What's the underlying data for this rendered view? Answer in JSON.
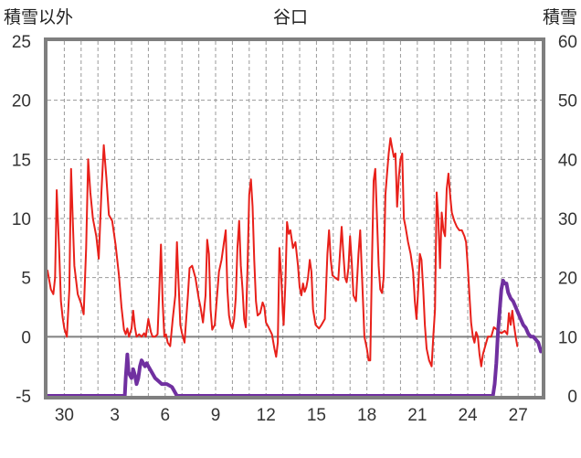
{
  "chart_data": {
    "type": "line",
    "title": "谷口",
    "left_axis_label": "積雪以外",
    "right_axis_label": "積雪",
    "ylim_left": [
      -5,
      25
    ],
    "yticks_left": [
      "25",
      "20",
      "15",
      "10",
      "5",
      "0",
      "-5"
    ],
    "ylim_right": [
      0,
      60
    ],
    "yticks_right": [
      "60",
      "50",
      "40",
      "30",
      "20",
      "10",
      "0"
    ],
    "x_start_day": -1,
    "x_end_day": 28.4,
    "x_tick_labels": [
      {
        "day": 0,
        "label": "30"
      },
      {
        "day": 3,
        "label": "3"
      },
      {
        "day": 6,
        "label": "6"
      },
      {
        "day": 9,
        "label": "9"
      },
      {
        "day": 12,
        "label": "12"
      },
      {
        "day": 15,
        "label": "15"
      },
      {
        "day": 18,
        "label": "18"
      },
      {
        "day": 21,
        "label": "21"
      },
      {
        "day": 24,
        "label": "24"
      },
      {
        "day": 27,
        "label": "27"
      }
    ],
    "grid": true,
    "series": [
      {
        "axis": "left",
        "color": "#e8201a",
        "points": [
          [
            -1.0,
            5.6
          ],
          [
            -0.8,
            4.0
          ],
          [
            -0.65,
            3.6
          ],
          [
            -0.55,
            5.0
          ],
          [
            -0.45,
            12.4
          ],
          [
            -0.3,
            7.0
          ],
          [
            -0.2,
            3.0
          ],
          [
            -0.1,
            1.6
          ],
          [
            0.0,
            0.7
          ],
          [
            0.15,
            0.0
          ],
          [
            0.3,
            4.0
          ],
          [
            0.4,
            14.2
          ],
          [
            0.5,
            10.0
          ],
          [
            0.6,
            6.0
          ],
          [
            0.8,
            3.6
          ],
          [
            1.0,
            2.8
          ],
          [
            1.15,
            1.9
          ],
          [
            1.3,
            7.5
          ],
          [
            1.42,
            15.0
          ],
          [
            1.55,
            12.2
          ],
          [
            1.7,
            10.0
          ],
          [
            1.9,
            8.5
          ],
          [
            2.05,
            6.6
          ],
          [
            2.2,
            12.0
          ],
          [
            2.35,
            16.2
          ],
          [
            2.5,
            13.5
          ],
          [
            2.65,
            10.3
          ],
          [
            2.85,
            9.8
          ],
          [
            3.05,
            7.8
          ],
          [
            3.25,
            5.2
          ],
          [
            3.4,
            2.5
          ],
          [
            3.55,
            0.6
          ],
          [
            3.65,
            0.2
          ],
          [
            3.75,
            0.7
          ],
          [
            3.85,
            0.0
          ],
          [
            4.0,
            0.7
          ],
          [
            4.1,
            2.2
          ],
          [
            4.2,
            0.8
          ],
          [
            4.3,
            0.0
          ],
          [
            4.45,
            0.2
          ],
          [
            4.6,
            0.0
          ],
          [
            4.75,
            0.3
          ],
          [
            4.85,
            0.0
          ],
          [
            5.0,
            1.5
          ],
          [
            5.15,
            0.4
          ],
          [
            5.25,
            0.0
          ],
          [
            5.4,
            0.0
          ],
          [
            5.55,
            0.2
          ],
          [
            5.65,
            4.0
          ],
          [
            5.75,
            7.8
          ],
          [
            5.85,
            3.0
          ],
          [
            5.95,
            0.0
          ],
          [
            6.05,
            0.2
          ],
          [
            6.15,
            -0.5
          ],
          [
            6.3,
            -0.8
          ],
          [
            6.45,
            1.5
          ],
          [
            6.6,
            3.5
          ],
          [
            6.7,
            8.0
          ],
          [
            6.8,
            4.5
          ],
          [
            6.9,
            1.0
          ],
          [
            7.0,
            0.3
          ],
          [
            7.15,
            -0.5
          ],
          [
            7.35,
            3.5
          ],
          [
            7.45,
            5.8
          ],
          [
            7.6,
            6.0
          ],
          [
            7.8,
            5.0
          ],
          [
            8.0,
            3.2
          ],
          [
            8.1,
            2.5
          ],
          [
            8.25,
            1.2
          ],
          [
            8.4,
            3.5
          ],
          [
            8.5,
            8.2
          ],
          [
            8.6,
            7.0
          ],
          [
            8.7,
            2.3
          ],
          [
            8.8,
            0.6
          ],
          [
            8.95,
            1.0
          ],
          [
            9.2,
            5.5
          ],
          [
            9.35,
            6.5
          ],
          [
            9.5,
            8.0
          ],
          [
            9.6,
            9.0
          ],
          [
            9.7,
            4.0
          ],
          [
            9.8,
            1.8
          ],
          [
            9.9,
            1.0
          ],
          [
            10.0,
            0.7
          ],
          [
            10.1,
            1.5
          ],
          [
            10.2,
            3.3
          ],
          [
            10.3,
            7.5
          ],
          [
            10.4,
            9.8
          ],
          [
            10.5,
            6.0
          ],
          [
            10.6,
            4.0
          ],
          [
            10.7,
            1.5
          ],
          [
            10.8,
            0.8
          ],
          [
            10.9,
            6.0
          ],
          [
            11.0,
            12.0
          ],
          [
            11.1,
            13.3
          ],
          [
            11.2,
            11.0
          ],
          [
            11.3,
            6.5
          ],
          [
            11.4,
            3.0
          ],
          [
            11.5,
            1.8
          ],
          [
            11.65,
            2.0
          ],
          [
            11.8,
            2.9
          ],
          [
            11.9,
            2.5
          ],
          [
            12.0,
            1.2
          ],
          [
            12.15,
            0.8
          ],
          [
            12.35,
            0.2
          ],
          [
            12.5,
            -1.0
          ],
          [
            12.6,
            -1.7
          ],
          [
            12.7,
            -0.5
          ],
          [
            12.8,
            7.5
          ],
          [
            12.9,
            5.2
          ],
          [
            13.0,
            2.0
          ],
          [
            13.05,
            1.0
          ],
          [
            13.15,
            4.5
          ],
          [
            13.25,
            9.7
          ],
          [
            13.35,
            8.7
          ],
          [
            13.45,
            9.0
          ],
          [
            13.6,
            7.5
          ],
          [
            13.75,
            8.0
          ],
          [
            13.9,
            6.0
          ],
          [
            14.0,
            4.2
          ],
          [
            14.1,
            3.5
          ],
          [
            14.2,
            4.5
          ],
          [
            14.3,
            3.8
          ],
          [
            14.4,
            4.2
          ],
          [
            14.5,
            5.0
          ],
          [
            14.6,
            6.5
          ],
          [
            14.7,
            5.5
          ],
          [
            14.8,
            2.3
          ],
          [
            14.95,
            1.0
          ],
          [
            15.15,
            0.7
          ],
          [
            15.3,
            1.0
          ],
          [
            15.5,
            1.5
          ],
          [
            15.65,
            7.0
          ],
          [
            15.75,
            9.0
          ],
          [
            15.85,
            6.5
          ],
          [
            15.95,
            5.2
          ],
          [
            16.1,
            5.0
          ],
          [
            16.3,
            4.8
          ],
          [
            16.5,
            9.3
          ],
          [
            16.6,
            7.0
          ],
          [
            16.7,
            5.0
          ],
          [
            16.8,
            4.6
          ],
          [
            16.9,
            5.8
          ],
          [
            17.0,
            8.5
          ],
          [
            17.1,
            6.2
          ],
          [
            17.2,
            3.5
          ],
          [
            17.35,
            3.0
          ],
          [
            17.5,
            7.0
          ],
          [
            17.6,
            9.0
          ],
          [
            17.7,
            5.5
          ],
          [
            17.85,
            0.0
          ],
          [
            18.0,
            -1.0
          ],
          [
            18.1,
            -2.0
          ],
          [
            18.2,
            -2.0
          ],
          [
            18.3,
            6.0
          ],
          [
            18.4,
            13.2
          ],
          [
            18.5,
            14.2
          ],
          [
            18.6,
            10.0
          ],
          [
            18.7,
            6.0
          ],
          [
            18.8,
            4.0
          ],
          [
            18.9,
            3.7
          ],
          [
            19.0,
            5.0
          ],
          [
            19.1,
            12.0
          ],
          [
            19.2,
            13.8
          ],
          [
            19.3,
            15.5
          ],
          [
            19.4,
            16.8
          ],
          [
            19.5,
            16.0
          ],
          [
            19.6,
            15.2
          ],
          [
            19.7,
            15.5
          ],
          [
            19.8,
            11.0
          ],
          [
            19.9,
            13.5
          ],
          [
            20.0,
            15.0
          ],
          [
            20.1,
            15.5
          ],
          [
            20.2,
            10.0
          ],
          [
            20.3,
            9.3
          ],
          [
            20.45,
            8.0
          ],
          [
            20.6,
            7.0
          ],
          [
            20.75,
            5.5
          ],
          [
            20.85,
            3.0
          ],
          [
            20.95,
            1.5
          ],
          [
            21.05,
            4.0
          ],
          [
            21.15,
            7.0
          ],
          [
            21.25,
            6.5
          ],
          [
            21.35,
            4.0
          ],
          [
            21.45,
            1.0
          ],
          [
            21.55,
            -1.0
          ],
          [
            21.7,
            -2.0
          ],
          [
            21.85,
            -2.5
          ],
          [
            21.95,
            0.0
          ],
          [
            22.05,
            2.3
          ],
          [
            22.15,
            12.2
          ],
          [
            22.25,
            10.0
          ],
          [
            22.35,
            5.8
          ],
          [
            22.45,
            10.5
          ],
          [
            22.55,
            9.0
          ],
          [
            22.65,
            8.5
          ],
          [
            22.75,
            12.5
          ],
          [
            22.85,
            13.8
          ],
          [
            22.95,
            12.0
          ],
          [
            23.05,
            10.5
          ],
          [
            23.2,
            9.8
          ],
          [
            23.35,
            9.3
          ],
          [
            23.5,
            9.0
          ],
          [
            23.65,
            9.0
          ],
          [
            23.8,
            8.5
          ],
          [
            23.9,
            8.0
          ],
          [
            24.0,
            6.0
          ],
          [
            24.1,
            3.5
          ],
          [
            24.2,
            1.2
          ],
          [
            24.3,
            0.0
          ],
          [
            24.4,
            -0.5
          ],
          [
            24.5,
            0.4
          ],
          [
            24.6,
            0.0
          ],
          [
            24.7,
            -1.5
          ],
          [
            24.8,
            -2.5
          ],
          [
            24.9,
            -1.5
          ],
          [
            25.0,
            -1.0
          ],
          [
            25.2,
            0.0
          ],
          [
            25.4,
            0.0
          ],
          [
            25.55,
            0.8
          ],
          [
            25.65,
            0.7
          ],
          [
            25.8,
            0.5
          ],
          [
            26.0,
            0.3
          ],
          [
            26.2,
            0.5
          ],
          [
            26.35,
            0.2
          ],
          [
            26.45,
            2.0
          ],
          [
            26.55,
            1.0
          ],
          [
            26.65,
            2.2
          ],
          [
            26.75,
            1.0
          ],
          [
            26.85,
            0.0
          ],
          [
            26.95,
            -0.8
          ]
        ]
      },
      {
        "axis": "right",
        "color": "#7030a0",
        "points": [
          [
            -1.0,
            0
          ],
          [
            3.6,
            0
          ],
          [
            3.65,
            3.0
          ],
          [
            3.75,
            7.0
          ],
          [
            3.82,
            4.0
          ],
          [
            3.9,
            3.5
          ],
          [
            4.0,
            3.0
          ],
          [
            4.1,
            4.5
          ],
          [
            4.2,
            3.5
          ],
          [
            4.3,
            2.0
          ],
          [
            4.4,
            3.0
          ],
          [
            4.5,
            5.0
          ],
          [
            4.6,
            6.0
          ],
          [
            4.7,
            5.5
          ],
          [
            4.8,
            5.0
          ],
          [
            4.9,
            5.5
          ],
          [
            5.0,
            5.0
          ],
          [
            5.2,
            4.0
          ],
          [
            5.4,
            3.0
          ],
          [
            5.6,
            2.5
          ],
          [
            5.8,
            2.0
          ],
          [
            6.1,
            2.0
          ],
          [
            6.4,
            1.5
          ],
          [
            6.6,
            0.5
          ],
          [
            6.7,
            0
          ],
          [
            25.5,
            0
          ],
          [
            25.6,
            2.0
          ],
          [
            25.7,
            5.5
          ],
          [
            25.8,
            11.0
          ],
          [
            25.9,
            14.5
          ],
          [
            26.0,
            18.0
          ],
          [
            26.1,
            19.5
          ],
          [
            26.2,
            19.0
          ],
          [
            26.3,
            19.0
          ],
          [
            26.4,
            17.5
          ],
          [
            26.55,
            16.5
          ],
          [
            26.7,
            16.0
          ],
          [
            26.85,
            15.0
          ],
          [
            27.0,
            14.0
          ],
          [
            27.15,
            13.0
          ],
          [
            27.3,
            12.0
          ],
          [
            27.45,
            11.5
          ],
          [
            27.6,
            10.5
          ],
          [
            27.75,
            10.0
          ],
          [
            27.9,
            10.0
          ],
          [
            28.05,
            9.5
          ],
          [
            28.2,
            9.0
          ],
          [
            28.35,
            7.5
          ]
        ]
      }
    ]
  }
}
